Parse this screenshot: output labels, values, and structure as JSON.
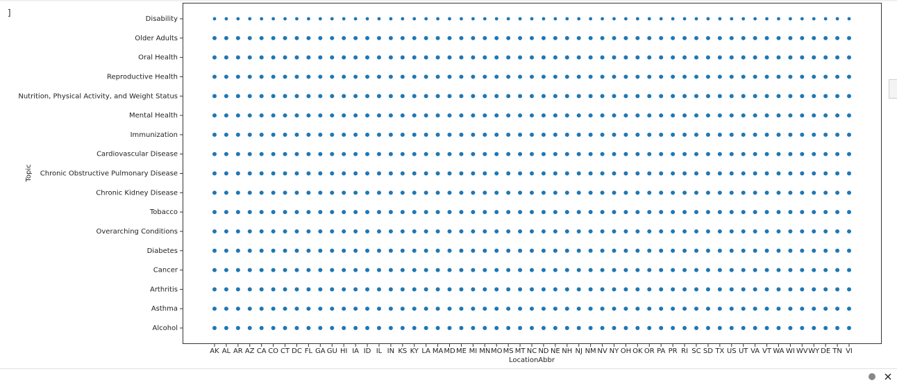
{
  "prompt": "]",
  "chart_data": {
    "type": "scatter",
    "xlabel": "LocationAbbr",
    "ylabel": "Topic",
    "color": "#1f77b4",
    "categories": [
      "AK",
      "AL",
      "AR",
      "AZ",
      "CA",
      "CO",
      "CT",
      "DC",
      "FL",
      "GA",
      "GU",
      "HI",
      "IA",
      "ID",
      "IL",
      "IN",
      "KS",
      "KY",
      "LA",
      "MA",
      "MD",
      "ME",
      "MI",
      "MN",
      "MO",
      "MS",
      "MT",
      "NC",
      "ND",
      "NE",
      "NH",
      "NJ",
      "NM",
      "NV",
      "NY",
      "OH",
      "OK",
      "OR",
      "PA",
      "PR",
      "RI",
      "SC",
      "SD",
      "TX",
      "US",
      "UT",
      "VA",
      "VT",
      "WA",
      "WI",
      "WV",
      "WY",
      "DE",
      "TN",
      "VI"
    ],
    "y_categories": [
      "Alcohol",
      "Asthma",
      "Arthritis",
      "Cancer",
      "Diabetes",
      "Overarching Conditions",
      "Tobacco",
      "Chronic Kidney Disease",
      "Chronic Obstructive Pulmonary Disease",
      "Cardiovascular Disease",
      "Immunization",
      "Mental Health",
      "Nutrition, Physical Activity, and Weight Status",
      "Reproductive Health",
      "Oral Health",
      "Older Adults",
      "Disability"
    ]
  }
}
